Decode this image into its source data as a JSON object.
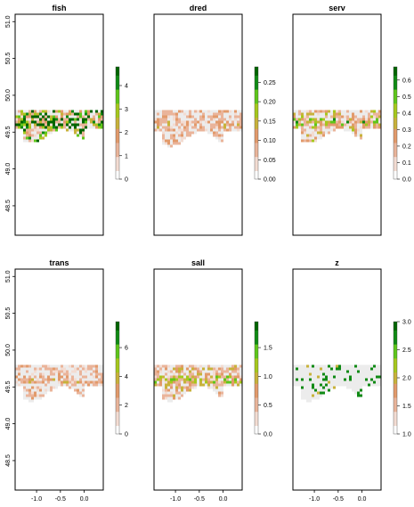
{
  "chart_data": [
    {
      "type": "heatmap",
      "title": "fish",
      "xlim": [
        -1.45,
        0.4
      ],
      "ylim": [
        48.1,
        51.1
      ],
      "yticks": [
        48.5,
        49.0,
        49.5,
        50.0,
        50.5,
        51.0
      ],
      "xticks": [],
      "legend": {
        "min": 0,
        "max": 4.8,
        "ticks": [
          0,
          1,
          2,
          3,
          4
        ]
      },
      "coverage": "dense",
      "mean_level": 0.5,
      "extent": {
        "lon": [
          -1.45,
          0.4
        ],
        "lat": [
          49.35,
          49.8
        ]
      }
    },
    {
      "type": "heatmap",
      "title": "dred",
      "xlim": [
        -1.45,
        0.4
      ],
      "ylim": [
        48.1,
        51.1
      ],
      "yticks": [],
      "xticks": [],
      "legend": {
        "min": 0,
        "max": 0.29,
        "ticks": [
          0.0,
          0.05,
          0.1,
          0.15,
          0.2,
          0.25
        ]
      },
      "coverage": "dense",
      "mean_level": 0.12,
      "extent": {
        "lon": [
          -1.45,
          0.4
        ],
        "lat": [
          49.3,
          49.8
        ]
      }
    },
    {
      "type": "heatmap",
      "title": "serv",
      "xlim": [
        -1.45,
        0.4
      ],
      "ylim": [
        48.1,
        51.1
      ],
      "yticks": [],
      "xticks": [],
      "legend": {
        "min": 0,
        "max": 0.68,
        "ticks": [
          0.0,
          0.1,
          0.2,
          0.3,
          0.4,
          0.5,
          0.6
        ]
      },
      "coverage": "dense",
      "mean_level": 0.22,
      "extent": {
        "lon": [
          -1.45,
          0.4
        ],
        "lat": [
          49.35,
          49.8
        ]
      }
    },
    {
      "type": "heatmap",
      "title": "trans",
      "xlim": [
        -1.45,
        0.4
      ],
      "ylim": [
        48.1,
        51.1
      ],
      "yticks": [
        48.5,
        49.0,
        49.5,
        50.0,
        50.5,
        51.0
      ],
      "xticks": [
        -1.0,
        -0.5,
        0.0
      ],
      "legend": {
        "min": 0,
        "max": 7.8,
        "ticks": [
          0,
          2,
          4,
          6
        ]
      },
      "coverage": "dense",
      "mean_level": 0.1,
      "extent": {
        "lon": [
          -1.45,
          0.4
        ],
        "lat": [
          49.3,
          49.8
        ]
      }
    },
    {
      "type": "heatmap",
      "title": "sall",
      "xlim": [
        -1.45,
        0.4
      ],
      "ylim": [
        48.1,
        51.1
      ],
      "yticks": [],
      "xticks": [
        -1.0,
        -0.5,
        0.0
      ],
      "legend": {
        "min": 0,
        "max": 1.95,
        "ticks": [
          0.0,
          0.5,
          1.0,
          1.5
        ]
      },
      "coverage": "dense",
      "mean_level": 0.2,
      "extent": {
        "lon": [
          -1.45,
          0.4
        ],
        "lat": [
          49.3,
          49.8
        ]
      }
    },
    {
      "type": "heatmap",
      "title": "z",
      "xlim": [
        -1.45,
        0.4
      ],
      "ylim": [
        48.1,
        51.1
      ],
      "yticks": [],
      "xticks": [
        -1.0,
        -0.5,
        0.0
      ],
      "legend": {
        "min": 1,
        "max": 3,
        "ticks": [
          1.0,
          1.5,
          2.0,
          2.5,
          3.0
        ]
      },
      "coverage": "sparse",
      "mean_level": 0.05,
      "extent": {
        "lon": [
          -1.45,
          0.4
        ],
        "lat": [
          49.3,
          49.8
        ]
      }
    }
  ],
  "colors": {
    "ramp": [
      "#ffffff",
      "#f3dcd2",
      "#eab49a",
      "#e29a6b",
      "#c8b23a",
      "#a6c81c",
      "#5ec61a",
      "#0f8a14",
      "#006400"
    ],
    "sea": "#ececec",
    "axis": "#000000"
  }
}
